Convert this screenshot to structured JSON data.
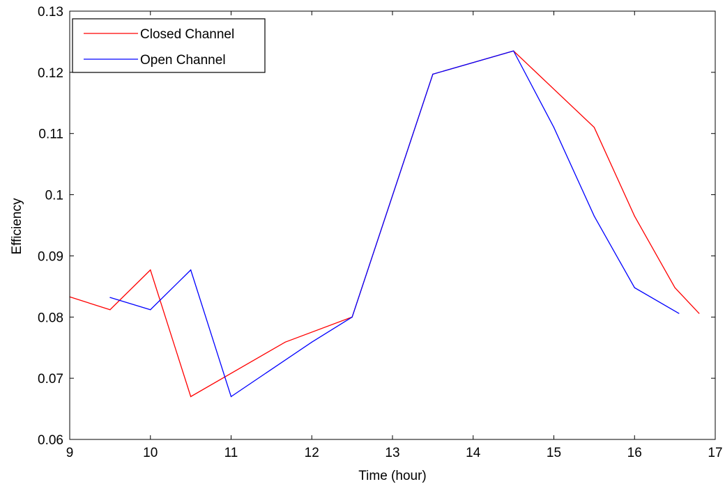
{
  "chart_data": {
    "type": "line",
    "title": "",
    "xlabel": "Time (hour)",
    "ylabel": "Efficiency",
    "xlim": [
      9,
      17
    ],
    "ylim": [
      0.06,
      0.13
    ],
    "xticks": [
      9,
      10,
      11,
      12,
      13,
      14,
      15,
      16,
      17
    ],
    "xtick_labels": [
      "9",
      "10",
      "11",
      "12",
      "13",
      "14",
      "15",
      "16",
      "17"
    ],
    "yticks": [
      0.06,
      0.07,
      0.08,
      0.09,
      0.1,
      0.11,
      0.12,
      0.13
    ],
    "ytick_labels": [
      "0.06",
      "0.07",
      "0.08",
      "0.09",
      "0.1",
      "0.11",
      "0.12",
      "0.13"
    ],
    "grid": false,
    "legend_position": "top-left",
    "series": [
      {
        "name": "Closed Channel",
        "color": "#ff0000",
        "x": [
          9.0,
          9.5,
          10.0,
          10.5,
          11.67,
          12.5,
          13.5,
          14.5,
          15.5,
          16.0,
          16.5,
          16.8
        ],
        "y": [
          0.0833,
          0.0812,
          0.0877,
          0.067,
          0.0759,
          0.08,
          0.1197,
          0.1235,
          0.111,
          0.0965,
          0.0848,
          0.0806
        ]
      },
      {
        "name": "Open Channel",
        "color": "#0000ff",
        "x": [
          9.5,
          10.0,
          10.5,
          11.0,
          12.0,
          12.5,
          13.5,
          14.5,
          15.0,
          15.5,
          16.0,
          16.55
        ],
        "y": [
          0.0832,
          0.0812,
          0.0877,
          0.067,
          0.0759,
          0.08,
          0.1197,
          0.1235,
          0.111,
          0.0965,
          0.0848,
          0.0806
        ]
      }
    ]
  }
}
